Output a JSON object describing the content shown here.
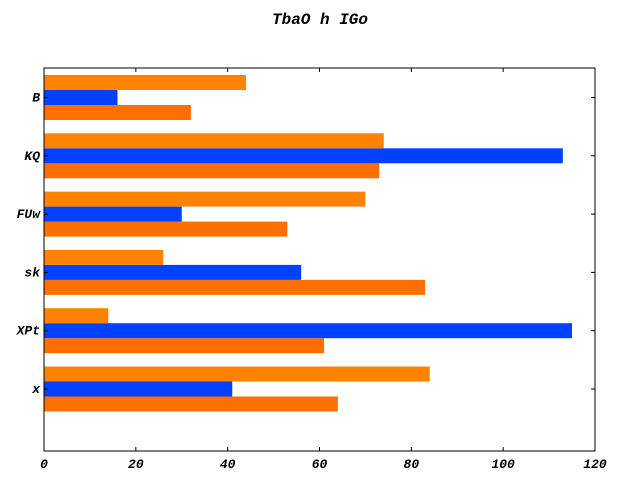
{
  "chart_data": {
    "type": "bar",
    "orientation": "horizontal",
    "title": "TbaO h IGo",
    "xlabel": "",
    "ylabel": "",
    "categories": [
      "x",
      "XPt",
      "sk",
      "FUw",
      "KQ",
      "B"
    ],
    "xlim": [
      0,
      120
    ],
    "xticks": [
      0,
      20,
      40,
      60,
      80,
      100,
      120
    ],
    "grid": false,
    "legend": "none",
    "series": [
      {
        "color": "#ff6f00",
        "values": [
          64,
          61,
          83,
          53,
          73,
          32
        ]
      },
      {
        "color": "#0041ff",
        "values": [
          41,
          115,
          56,
          30,
          113,
          16
        ]
      },
      {
        "color": "#ff8300",
        "values": [
          84,
          14,
          26,
          70,
          74,
          44
        ]
      }
    ]
  }
}
